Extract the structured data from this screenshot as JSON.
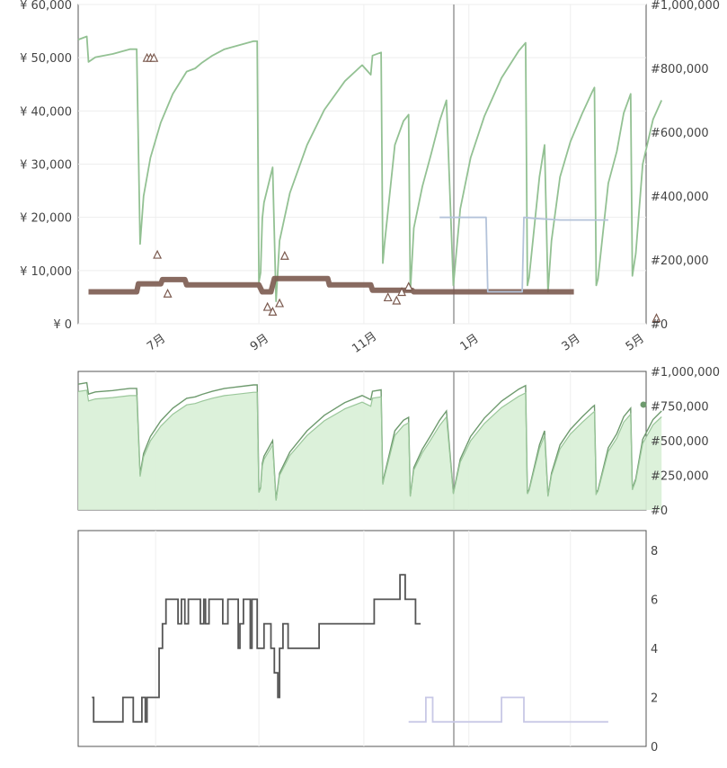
{
  "colors": {
    "primary_line": "#93c193",
    "price_line": "#b4c3da",
    "markers": "#7b5a4f",
    "grey_markers": "#aaaaaa",
    "area_fill": "#d8efd6",
    "area_line": "#6e9a6e",
    "step_line": "#555555",
    "cursor": "#999999"
  },
  "chart_data": [
    {
      "id": "main",
      "type": "line",
      "left_axis": {
        "ticks": [
          "¥ 0",
          "¥ 10,000",
          "¥ 20,000",
          "¥ 30,000",
          "¥ 40,000",
          "¥ 50,000",
          "¥ 60,000"
        ],
        "values": [
          0,
          10000,
          20000,
          30000,
          40000,
          50000,
          60000
        ],
        "range": [
          0,
          60000
        ]
      },
      "right_axis": {
        "ticks": [
          "#0",
          "#200,000",
          "#400,000",
          "#600,000",
          "#800,000",
          "#1,000,000"
        ],
        "values": [
          0,
          200000,
          400000,
          600000,
          800000,
          1000000
        ],
        "range": [
          0,
          1000000
        ]
      },
      "x_axis": {
        "range_days": [
          0,
          330
        ],
        "ticks": [
          {
            "label": "7月",
            "day": 45
          },
          {
            "label": "9月",
            "day": 105
          },
          {
            "label": "11月",
            "day": 166
          },
          {
            "label": "1月",
            "day": 227
          },
          {
            "label": "3月",
            "day": 286
          },
          {
            "label": "5月",
            "day": 346
          }
        ]
      },
      "series": [
        {
          "role": "sales-rank",
          "axis": "right",
          "points": [
            [
              0,
              890000
            ],
            [
              5,
              900000
            ],
            [
              6,
              820000
            ],
            [
              10,
              835000
            ],
            [
              20,
              845000
            ],
            [
              30,
              860000
            ],
            [
              34,
              860000
            ],
            [
              36,
              250000
            ],
            [
              38,
              400000
            ],
            [
              42,
              520000
            ],
            [
              48,
              630000
            ],
            [
              55,
              720000
            ],
            [
              63,
              790000
            ],
            [
              68,
              800000
            ],
            [
              72,
              818000
            ],
            [
              78,
              840000
            ],
            [
              85,
              860000
            ],
            [
              102,
              885000
            ],
            [
              104,
              885000
            ],
            [
              105,
              130000
            ],
            [
              106,
              160000
            ],
            [
              107,
              330000
            ],
            [
              108,
              380000
            ],
            [
              113,
              490000
            ],
            [
              115,
              70000
            ],
            [
              117,
              260000
            ],
            [
              123,
              410000
            ],
            [
              133,
              560000
            ],
            [
              143,
              670000
            ],
            [
              155,
              760000
            ],
            [
              165,
              810000
            ],
            [
              170,
              780000
            ],
            [
              171,
              840000
            ],
            [
              176,
              850000
            ],
            [
              177,
              190000
            ],
            [
              178,
              250000
            ],
            [
              184,
              560000
            ],
            [
              189,
              635000
            ],
            [
              192,
              655000
            ],
            [
              193,
              100000
            ],
            [
              195,
              300000
            ],
            [
              200,
              430000
            ],
            [
              205,
              530000
            ],
            [
              210,
              635000
            ],
            [
              214,
              700000
            ],
            [
              218,
              120000
            ],
            [
              222,
              360000
            ],
            [
              228,
              520000
            ],
            [
              236,
              650000
            ],
            [
              246,
              770000
            ],
            [
              256,
              855000
            ],
            [
              260,
              880000
            ],
            [
              261,
              120000
            ],
            [
              262,
              145000
            ],
            [
              268,
              460000
            ],
            [
              271,
              560000
            ],
            [
              273,
              100000
            ],
            [
              275,
              260000
            ],
            [
              280,
              460000
            ],
            [
              286,
              570000
            ],
            [
              293,
              660000
            ],
            [
              299,
              730000
            ],
            [
              300,
              740000
            ],
            [
              301,
              120000
            ],
            [
              302,
              140000
            ],
            [
              308,
              440000
            ],
            [
              313,
              540000
            ],
            [
              317,
              660000
            ],
            [
              321,
              720000
            ],
            [
              322,
              150000
            ],
            [
              324,
              220000
            ],
            [
              328,
              500000
            ],
            [
              334,
              640000
            ],
            [
              339,
              700000
            ]
          ]
        },
        {
          "role": "new-price",
          "axis": "left",
          "points": [
            [
              6,
              6000
            ],
            [
              34,
              6000
            ],
            [
              35,
              7500
            ],
            [
              48,
              7500
            ],
            [
              49,
              8300
            ],
            [
              62,
              8300
            ],
            [
              63,
              7300
            ],
            [
              105,
              7300
            ],
            [
              107,
              6000
            ],
            [
              112,
              6000
            ],
            [
              114,
              8500
            ],
            [
              145,
              8500
            ],
            [
              146,
              7300
            ],
            [
              170,
              7300
            ],
            [
              171,
              6300
            ],
            [
              194,
              6300
            ],
            [
              195,
              6000
            ],
            [
              288,
              6000
            ]
          ]
        },
        {
          "role": "used-price",
          "axis": "left",
          "points": [
            [
              210,
              20000
            ],
            [
              237,
              20000
            ],
            [
              238,
              6000
            ],
            [
              258,
              6000
            ],
            [
              259,
              20000
            ],
            [
              265,
              19800
            ],
            [
              280,
              19500
            ],
            [
              308,
              19500
            ]
          ]
        }
      ],
      "marker_points": [
        {
          "day": 40,
          "value": 50000
        },
        {
          "day": 42,
          "value": 50000
        },
        {
          "day": 44,
          "value": 50000
        },
        {
          "day": 46,
          "value": 13000
        },
        {
          "day": 52,
          "value": 5700
        },
        {
          "day": 120,
          "value": 12800
        },
        {
          "day": 110,
          "value": 3200
        },
        {
          "day": 113,
          "value": 2300
        },
        {
          "day": 117,
          "value": 3900
        },
        {
          "day": 180,
          "value": 5000
        },
        {
          "day": 185,
          "value": 4400
        },
        {
          "day": 188,
          "value": 6000
        },
        {
          "day": 192,
          "value": 7000
        },
        {
          "day": 336,
          "value": 1100
        }
      ]
    },
    {
      "id": "rank-panel",
      "type": "area",
      "right_axis": {
        "ticks": [
          "#0",
          "#250,000",
          "#500,000",
          "#750,000",
          "#1,000,000"
        ],
        "values": [
          0,
          250000,
          500000,
          750000,
          1000000
        ],
        "range": [
          0,
          1000000
        ]
      }
    },
    {
      "id": "count-panel",
      "type": "line",
      "right_axis": {
        "ticks": [
          "0",
          "2",
          "4",
          "6",
          "8"
        ],
        "values": [
          0,
          2,
          4,
          6,
          8
        ],
        "range": [
          0,
          8.8
        ]
      },
      "series": [
        {
          "role": "offer-count",
          "points": [
            [
              8,
              2
            ],
            [
              9,
              1
            ],
            [
              25,
              1
            ],
            [
              26,
              2
            ],
            [
              31,
              2
            ],
            [
              32,
              1
            ],
            [
              36,
              1
            ],
            [
              37,
              2
            ],
            [
              39,
              1
            ],
            [
              40,
              2
            ],
            [
              47,
              4
            ],
            [
              49,
              5
            ],
            [
              51,
              6
            ],
            [
              58,
              6
            ],
            [
              58,
              5
            ],
            [
              60,
              6
            ],
            [
              62,
              5
            ],
            [
              64,
              6
            ],
            [
              71,
              6
            ],
            [
              71,
              5
            ],
            [
              73,
              6
            ],
            [
              74,
              5
            ],
            [
              76,
              6
            ],
            [
              83,
              6
            ],
            [
              84,
              5
            ],
            [
              87,
              6
            ],
            [
              92,
              6
            ],
            [
              93,
              4
            ],
            [
              94,
              5
            ],
            [
              96,
              6
            ],
            [
              99,
              6
            ],
            [
              100,
              4
            ],
            [
              101,
              6
            ],
            [
              104,
              6
            ],
            [
              104,
              4
            ],
            [
              106,
              4
            ],
            [
              108,
              5
            ],
            [
              110,
              5
            ],
            [
              112,
              4
            ],
            [
              114,
              3
            ],
            [
              116,
              2
            ],
            [
              117,
              4
            ],
            [
              119,
              5
            ],
            [
              121,
              5
            ],
            [
              122,
              4
            ],
            [
              129,
              4
            ],
            [
              131,
              4
            ],
            [
              138,
              4
            ],
            [
              140,
              5
            ],
            [
              170,
              5
            ],
            [
              172,
              6
            ],
            [
              187,
              6
            ],
            [
              187,
              7
            ],
            [
              190,
              7
            ],
            [
              190,
              6
            ],
            [
              195,
              6
            ],
            [
              196,
              5
            ],
            [
              199,
              5
            ]
          ]
        },
        {
          "role": "used-count",
          "points": [
            [
              192,
              1
            ],
            [
              201,
              1
            ],
            [
              202,
              2
            ],
            [
              205,
              2
            ],
            [
              206,
              1
            ],
            [
              245,
              1
            ],
            [
              246,
              2
            ],
            [
              258,
              2
            ],
            [
              259,
              1
            ],
            [
              280,
              1
            ],
            [
              308,
              1
            ]
          ]
        }
      ]
    }
  ]
}
